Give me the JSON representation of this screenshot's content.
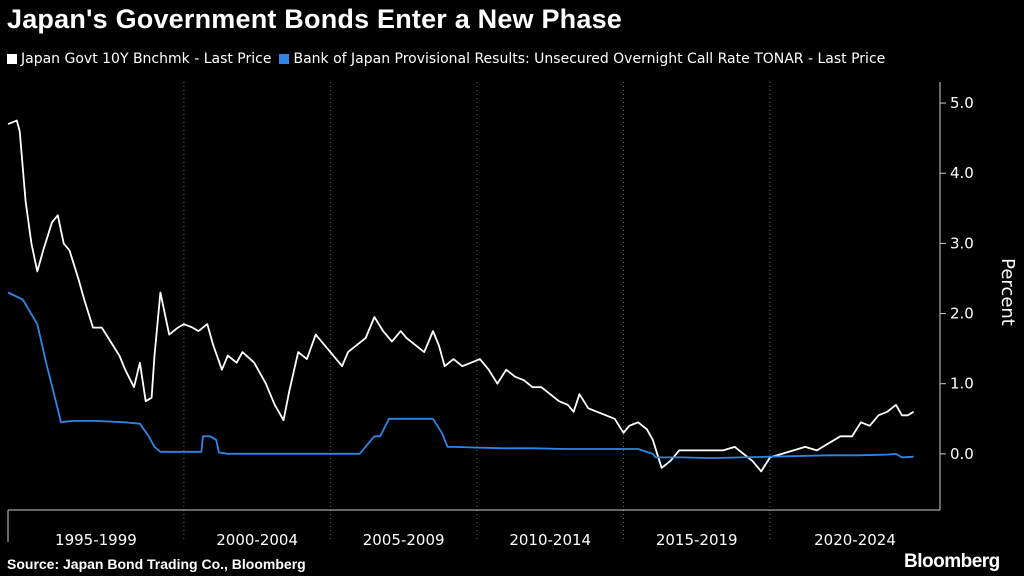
{
  "chart_data": {
    "type": "line",
    "title": "Japan's Government Bonds Enter a New Phase",
    "ylabel": "Percent",
    "ylim": [
      -0.8,
      5.3
    ],
    "yticks": [
      0.0,
      1.0,
      2.0,
      3.0,
      4.0,
      5.0
    ],
    "ytick_labels": [
      "0.0",
      "1.0",
      "2.0",
      "3.0",
      "4.0",
      "5.0"
    ],
    "xlim": [
      1994.0,
      2025.8
    ],
    "x_periods": [
      {
        "label": "1995-1999",
        "start": 1994,
        "end": 2000
      },
      {
        "label": "2000-2004",
        "start": 2000,
        "end": 2005
      },
      {
        "label": "2005-2009",
        "start": 2005,
        "end": 2010
      },
      {
        "label": "2010-2014",
        "start": 2010,
        "end": 2015
      },
      {
        "label": "2015-2019",
        "start": 2015,
        "end": 2020
      },
      {
        "label": "2020-2024",
        "start": 2020,
        "end": 2025.8
      }
    ],
    "y_axis_position": "right",
    "grid": "vertical dotted",
    "legend_position": "top-left",
    "series": [
      {
        "name": "Japan Govt 10Y Bnchmk - Last Price",
        "color": "#ffffff",
        "x": [
          1994.0,
          1994.3,
          1994.4,
          1994.6,
          1994.8,
          1995.0,
          1995.2,
          1995.5,
          1995.7,
          1995.9,
          1996.1,
          1996.4,
          1996.6,
          1996.9,
          1997.2,
          1997.5,
          1997.8,
          1998.0,
          1998.3,
          1998.5,
          1998.7,
          1998.9,
          1999.0,
          1999.2,
          1999.5,
          1999.8,
          2000.0,
          2000.3,
          2000.5,
          2000.8,
          2001.0,
          2001.3,
          2001.5,
          2001.8,
          2002.0,
          2002.4,
          2002.8,
          2003.1,
          2003.4,
          2003.6,
          2003.9,
          2004.2,
          2004.5,
          2004.8,
          2005.1,
          2005.4,
          2005.6,
          2005.9,
          2006.2,
          2006.5,
          2006.8,
          2007.1,
          2007.4,
          2007.6,
          2007.9,
          2008.2,
          2008.5,
          2008.7,
          2008.9,
          2009.2,
          2009.5,
          2009.8,
          2010.1,
          2010.4,
          2010.7,
          2011.0,
          2011.3,
          2011.6,
          2011.9,
          2012.2,
          2012.5,
          2012.8,
          2013.1,
          2013.3,
          2013.5,
          2013.8,
          2014.1,
          2014.4,
          2014.7,
          2015.0,
          2015.2,
          2015.5,
          2015.8,
          2016.0,
          2016.3,
          2016.6,
          2016.9,
          2017.2,
          2017.6,
          2018.0,
          2018.4,
          2018.8,
          2019.1,
          2019.4,
          2019.7,
          2020.0,
          2020.4,
          2020.8,
          2021.2,
          2021.6,
          2022.0,
          2022.4,
          2022.8,
          2023.1,
          2023.4,
          2023.7,
          2024.0,
          2024.3,
          2024.5,
          2024.7,
          2024.9
        ],
        "y": [
          4.7,
          4.75,
          4.6,
          3.6,
          3.0,
          2.6,
          2.9,
          3.3,
          3.4,
          3.0,
          2.9,
          2.5,
          2.2,
          1.8,
          1.8,
          1.6,
          1.4,
          1.2,
          0.95,
          1.3,
          0.75,
          0.8,
          1.4,
          2.3,
          1.7,
          1.8,
          1.85,
          1.8,
          1.75,
          1.85,
          1.55,
          1.2,
          1.4,
          1.3,
          1.45,
          1.3,
          1.0,
          0.7,
          0.48,
          0.9,
          1.45,
          1.35,
          1.7,
          1.55,
          1.4,
          1.25,
          1.45,
          1.55,
          1.65,
          1.95,
          1.75,
          1.6,
          1.75,
          1.65,
          1.55,
          1.45,
          1.75,
          1.55,
          1.25,
          1.35,
          1.25,
          1.3,
          1.35,
          1.2,
          1.0,
          1.2,
          1.1,
          1.05,
          0.95,
          0.95,
          0.85,
          0.75,
          0.7,
          0.6,
          0.85,
          0.65,
          0.6,
          0.55,
          0.5,
          0.3,
          0.4,
          0.45,
          0.35,
          0.2,
          -0.2,
          -0.1,
          0.05,
          0.05,
          0.05,
          0.05,
          0.05,
          0.1,
          0.0,
          -0.1,
          -0.25,
          -0.05,
          0.0,
          0.05,
          0.1,
          0.05,
          0.15,
          0.25,
          0.25,
          0.45,
          0.4,
          0.55,
          0.6,
          0.7,
          0.55,
          0.55,
          0.6
        ]
      },
      {
        "name": "Bank of Japan Provisional Results: Unsecured Overnight Call Rate TONAR - Last Price",
        "color": "#2d86e6",
        "x": [
          1994.0,
          1994.5,
          1995.0,
          1995.3,
          1995.6,
          1995.75,
          1995.8,
          1996.2,
          1996.6,
          1997.0,
          1997.5,
          1998.0,
          1998.5,
          1998.8,
          1999.0,
          1999.2,
          1999.5,
          2000.0,
          2000.6,
          2000.65,
          2000.9,
          2001.1,
          2001.2,
          2001.5,
          2002.0,
          2003.0,
          2004.0,
          2005.0,
          2006.0,
          2006.4,
          2006.5,
          2006.7,
          2007.0,
          2007.2,
          2007.5,
          2008.0,
          2008.5,
          2008.8,
          2009.0,
          2009.2,
          2010.0,
          2011.0,
          2012.0,
          2013.0,
          2014.0,
          2015.0,
          2015.5,
          2016.0,
          2016.1,
          2017.0,
          2018.0,
          2019.0,
          2020.0,
          2021.0,
          2022.0,
          2023.0,
          2024.0,
          2024.3,
          2024.5,
          2024.9
        ],
        "y": [
          2.3,
          2.2,
          1.85,
          1.3,
          0.8,
          0.55,
          0.45,
          0.47,
          0.47,
          0.47,
          0.46,
          0.45,
          0.43,
          0.25,
          0.1,
          0.03,
          0.03,
          0.03,
          0.03,
          0.25,
          0.25,
          0.2,
          0.02,
          0.001,
          0.001,
          0.001,
          0.001,
          0.001,
          0.001,
          0.2,
          0.25,
          0.25,
          0.5,
          0.5,
          0.5,
          0.5,
          0.5,
          0.3,
          0.1,
          0.1,
          0.09,
          0.08,
          0.08,
          0.07,
          0.07,
          0.07,
          0.07,
          0.0,
          -0.05,
          -0.05,
          -0.06,
          -0.05,
          -0.04,
          -0.03,
          -0.02,
          -0.02,
          -0.01,
          0.0,
          -0.05,
          -0.04
        ]
      }
    ]
  },
  "legend": {
    "items": [
      {
        "label": "Japan Govt 10Y Bnchmk - Last Price",
        "color": "#ffffff"
      },
      {
        "label": "Bank of Japan Provisional Results: Unsecured Overnight Call Rate TONAR - Last Price",
        "color": "#2d86e6"
      }
    ]
  },
  "footer": {
    "source": "Source: Japan Bond Trading Co., Bloomberg",
    "brand": "Bloomberg"
  }
}
